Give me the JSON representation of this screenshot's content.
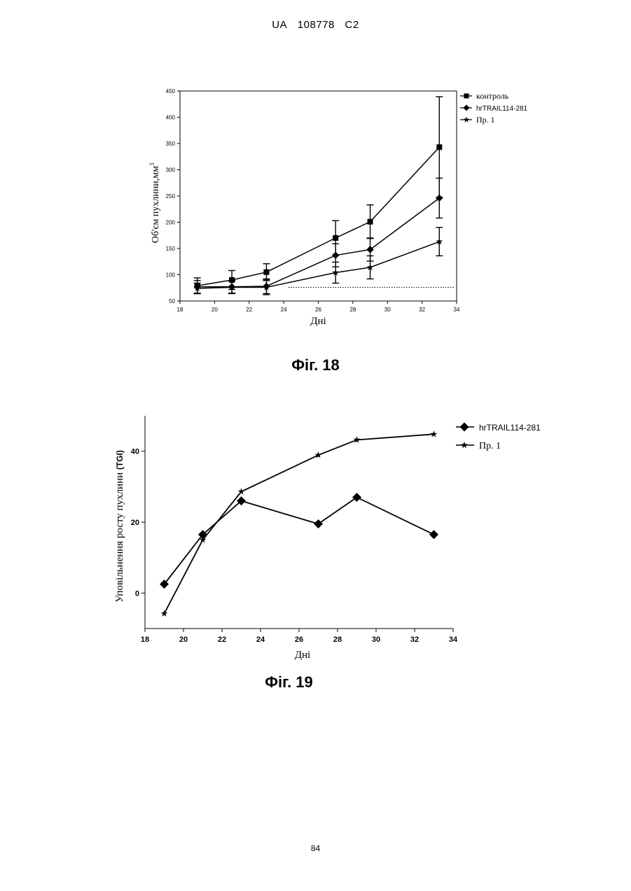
{
  "header": {
    "office": "UA",
    "number": "108778",
    "kind": "C2"
  },
  "page_number": "84",
  "chart_data": [
    {
      "type": "line",
      "caption": "Фіг. 18",
      "xlabel": "Дні",
      "ylabel": "Об'єм пухлини,мм",
      "ylabel_sup": "3",
      "xlim": [
        18,
        34
      ],
      "ylim": [
        50,
        450
      ],
      "xticks": [
        "18",
        "20",
        "22",
        "24",
        "26",
        "28",
        "30",
        "32",
        "34"
      ],
      "yticks": [
        "50",
        "100",
        "150",
        "200",
        "250",
        "300",
        "350",
        "400",
        "450"
      ],
      "error_bars": true,
      "legend_position": "top-right",
      "reference_line": {
        "y": 76,
        "style": "dotted"
      },
      "series": [
        {
          "name": "контроль",
          "marker": "square",
          "x": [
            19,
            21,
            23,
            27,
            29,
            33
          ],
          "y": [
            79,
            90,
            105,
            170,
            201,
            343
          ],
          "err": [
            15,
            18,
            16,
            33,
            32,
            96
          ]
        },
        {
          "name": "hrTRAIL114-281",
          "marker": "diamond",
          "x": [
            19,
            21,
            23,
            27,
            29,
            33
          ],
          "y": [
            77,
            77,
            78,
            137,
            148,
            246
          ],
          "err": [
            12,
            12,
            14,
            22,
            22,
            38
          ]
        },
        {
          "name": "Пр. 1",
          "marker": "star",
          "x": [
            19,
            21,
            23,
            27,
            29,
            33
          ],
          "y": [
            74,
            76,
            76,
            104,
            114,
            163
          ],
          "err": [
            10,
            12,
            14,
            20,
            22,
            27
          ]
        }
      ]
    },
    {
      "type": "line",
      "caption": "Фіг. 19",
      "xlabel": "Дні",
      "ylabel": "Уповільнення росту пухлини",
      "ylabel_suffix": "(TGI)",
      "xlim": [
        18,
        34
      ],
      "ylim": [
        -10,
        50
      ],
      "xticks": [
        "18",
        "20",
        "22",
        "24",
        "26",
        "28",
        "30",
        "32",
        "34"
      ],
      "yticks": [
        "0",
        "20",
        "40"
      ],
      "legend_position": "top-right",
      "series": [
        {
          "name": "hrTRAIL114-281",
          "marker": "diamond",
          "x": [
            19,
            21,
            23,
            27,
            29,
            33
          ],
          "y": [
            2.5,
            16.5,
            26,
            19.5,
            27,
            16.5
          ]
        },
        {
          "name": "Пр. 1",
          "marker": "star",
          "x": [
            19,
            21,
            23,
            27,
            29,
            33
          ],
          "y": [
            -5.8,
            15,
            28.6,
            38.9,
            43.2,
            44.8
          ]
        }
      ]
    }
  ]
}
